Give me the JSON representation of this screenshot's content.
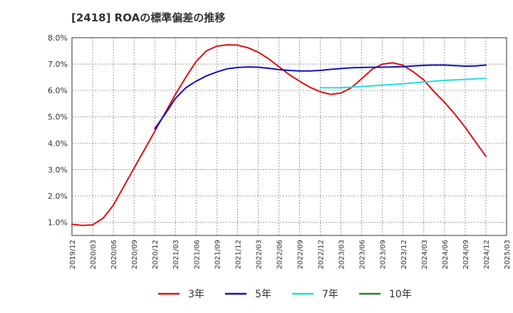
{
  "chart_data": {
    "type": "line",
    "title": "[2418]  ROAの標準偏差の推移",
    "xlabel": "",
    "ylabel": "",
    "ylim": [
      0.5,
      8.0
    ],
    "y_ticks": [
      1.0,
      2.0,
      3.0,
      4.0,
      5.0,
      6.0,
      7.0,
      8.0
    ],
    "y_tick_labels": [
      "1.0%",
      "2.0%",
      "3.0%",
      "4.0%",
      "5.0%",
      "6.0%",
      "7.0%",
      "8.0%"
    ],
    "x_tick_labels": [
      "2019/12",
      "2020/03",
      "2020/06",
      "2020/09",
      "2020/12",
      "2021/03",
      "2021/06",
      "2021/09",
      "2021/12",
      "2022/03",
      "2022/06",
      "2022/09",
      "2022/12",
      "2023/03",
      "2023/06",
      "2023/09",
      "2023/12",
      "2024/03",
      "2024/06",
      "2024/09",
      "2024/12",
      "2025/03"
    ],
    "grid": true,
    "legend_position": "bottom",
    "series": [
      {
        "name": "3年",
        "color": "#dd1111",
        "x_index": [
          0,
          0.5,
          1,
          1.5,
          2,
          2.5,
          3,
          3.5,
          4,
          4.5,
          5,
          5.5,
          6,
          6.5,
          7,
          7.5,
          8,
          8.5,
          9,
          9.5,
          10,
          10.5,
          11,
          11.5,
          12,
          12.5,
          13,
          13.5,
          14,
          14.5,
          15,
          15.5,
          16,
          16.5,
          17,
          17.5,
          18,
          18.5,
          19,
          19.5,
          20
        ],
        "values": [
          0.92,
          0.88,
          0.9,
          1.15,
          1.65,
          2.35,
          3.05,
          3.75,
          4.45,
          5.15,
          5.85,
          6.5,
          7.1,
          7.5,
          7.68,
          7.73,
          7.72,
          7.62,
          7.45,
          7.2,
          6.9,
          6.6,
          6.35,
          6.12,
          5.95,
          5.85,
          5.9,
          6.1,
          6.45,
          6.8,
          7.0,
          7.05,
          6.95,
          6.7,
          6.4,
          5.95,
          5.55,
          5.1,
          4.6,
          4.05,
          3.5
        ]
      },
      {
        "name": "5年",
        "color": "#1111bb",
        "x_index": [
          4,
          4.5,
          5,
          5.5,
          6,
          6.5,
          7,
          7.5,
          8,
          8.5,
          9,
          9.5,
          10,
          10.5,
          11,
          11.5,
          12,
          12.5,
          13,
          13.5,
          14,
          14.5,
          15,
          15.5,
          16,
          16.5,
          17,
          17.5,
          18,
          18.5,
          19,
          19.5,
          20
        ],
        "values": [
          4.55,
          5.1,
          5.7,
          6.1,
          6.35,
          6.55,
          6.7,
          6.82,
          6.87,
          6.89,
          6.88,
          6.84,
          6.79,
          6.76,
          6.74,
          6.74,
          6.76,
          6.8,
          6.83,
          6.86,
          6.87,
          6.88,
          6.88,
          6.89,
          6.9,
          6.93,
          6.95,
          6.96,
          6.96,
          6.94,
          6.92,
          6.93,
          6.96
        ]
      },
      {
        "name": "7年",
        "color": "#22dddd",
        "x_index": [
          12,
          13,
          14,
          15,
          16,
          17,
          18,
          19,
          20
        ],
        "values": [
          6.1,
          6.1,
          6.15,
          6.2,
          6.25,
          6.32,
          6.38,
          6.42,
          6.46
        ]
      },
      {
        "name": "10年",
        "color": "#228822",
        "x_index": [],
        "values": []
      }
    ]
  }
}
